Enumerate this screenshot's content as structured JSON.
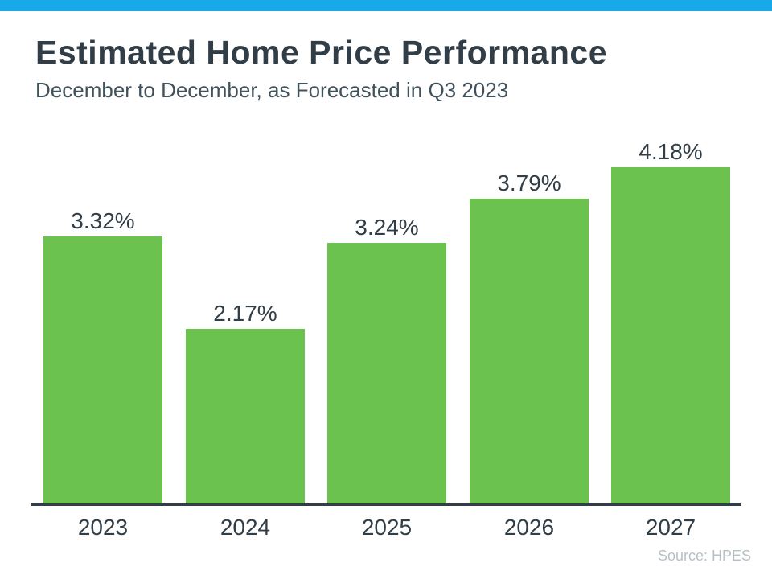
{
  "colors": {
    "accent": "#18A9EB",
    "bar": "#6CC24E",
    "title_text": "#323E47",
    "subtitle_text": "#42525C",
    "label_text": "#323E47",
    "axis": "#323E47",
    "source_text": "#B8C0C5"
  },
  "header": {
    "title": "Estimated Home Price Performance",
    "subtitle": "December to December, as Forecasted in Q3 2023"
  },
  "chart_data": {
    "type": "bar",
    "categories": [
      "2023",
      "2024",
      "2025",
      "2026",
      "2027"
    ],
    "values": [
      3.32,
      2.17,
      3.24,
      3.79,
      4.18
    ],
    "value_labels": [
      "3.32%",
      "2.17%",
      "3.24%",
      "3.79%",
      "4.18%"
    ],
    "title": "Estimated Home Price Performance",
    "subtitle": "December to December, as Forecasted in Q3 2023",
    "xlabel": "",
    "ylabel": "",
    "ylim": [
      0,
      4.6
    ],
    "grid": false,
    "legend": false,
    "bar_color": "#6CC24E",
    "data_label_position": "above-bar",
    "x_axis_line": true,
    "y_axis_visible": false
  },
  "footer": {
    "source": "Source: HPES"
  }
}
